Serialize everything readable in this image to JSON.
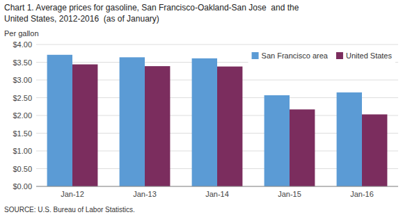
{
  "chart_data": {
    "type": "bar",
    "title": "Chart 1. Average prices for gasoline, San Francisco-Oakland-San Jose  and the",
    "subtitle": "United States, 2012-2016  (as of January)",
    "ylabel": "Per gallon",
    "source": "SOURCE: U.S. Bureau of Labor Statistics.",
    "categories": [
      "Jan-12",
      "Jan-13",
      "Jan-14",
      "Jan-15",
      "Jan-16"
    ],
    "series": [
      {
        "name": "San Francisco area",
        "color": "#5B9BD5",
        "values": [
          3.71,
          3.64,
          3.61,
          2.57,
          2.65
        ]
      },
      {
        "name": "United States",
        "color": "#7B2D5E",
        "values": [
          3.44,
          3.39,
          3.38,
          2.17,
          2.03
        ]
      }
    ],
    "ylim": [
      0.0,
      4.0
    ],
    "yticks": [
      {
        "value": 0.0,
        "label": "$0.00"
      },
      {
        "value": 0.5,
        "label": "$0.50"
      },
      {
        "value": 1.0,
        "label": "$1.00"
      },
      {
        "value": 1.5,
        "label": "$1.50"
      },
      {
        "value": 2.0,
        "label": "$2.00"
      },
      {
        "value": 2.5,
        "label": "$2.50"
      },
      {
        "value": 3.0,
        "label": "$3.00"
      },
      {
        "value": 3.5,
        "label": "$3.50"
      },
      {
        "value": 4.0,
        "label": "$4.00"
      }
    ],
    "grid": true,
    "legend": "upper right"
  }
}
